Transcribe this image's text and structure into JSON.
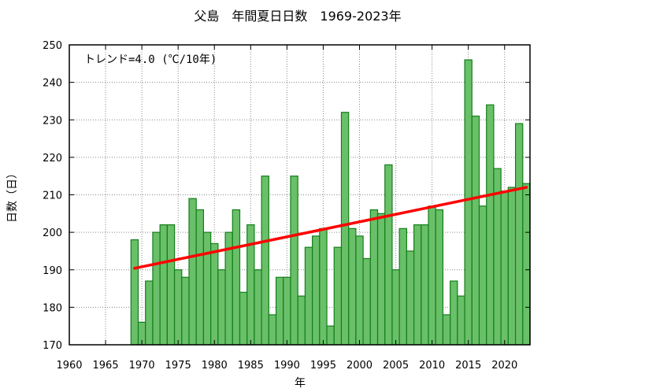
{
  "chart_data": {
    "type": "bar",
    "title": "父島　年間夏日日数　1969-2023年",
    "xlabel": "年",
    "ylabel": "日数（日）",
    "annotation": "トレンド=4.0 (℃/10年)",
    "xlim": [
      1960,
      2023.5
    ],
    "ylim": [
      170,
      250
    ],
    "xticks": [
      1960,
      1965,
      1970,
      1975,
      1980,
      1985,
      1990,
      1995,
      2000,
      2005,
      2010,
      2015,
      2020
    ],
    "yticks": [
      170,
      180,
      190,
      200,
      210,
      220,
      230,
      240,
      250
    ],
    "grid": true,
    "bar_color": "#6abf69",
    "bar_edge_color": "#137f1a",
    "trend_color": "#ff0000",
    "x": [
      1969,
      1970,
      1971,
      1972,
      1973,
      1974,
      1975,
      1976,
      1977,
      1978,
      1979,
      1980,
      1981,
      1982,
      1983,
      1984,
      1985,
      1986,
      1987,
      1988,
      1989,
      1990,
      1991,
      1992,
      1993,
      1994,
      1995,
      1996,
      1997,
      1998,
      1999,
      2000,
      2001,
      2002,
      2003,
      2004,
      2005,
      2006,
      2007,
      2008,
      2009,
      2010,
      2011,
      2012,
      2013,
      2014,
      2015,
      2016,
      2017,
      2018,
      2019,
      2020,
      2021,
      2022,
      2023
    ],
    "values": [
      198,
      176,
      187,
      200,
      202,
      202,
      190,
      188,
      209,
      206,
      200,
      197,
      190,
      200,
      206,
      184,
      202,
      190,
      215,
      178,
      188,
      188,
      215,
      183,
      196,
      199,
      201,
      175,
      196,
      232,
      201,
      199,
      193,
      206,
      205,
      218,
      190,
      201,
      195,
      202,
      202,
      207,
      206,
      178,
      187,
      183,
      246,
      231,
      207,
      234,
      217,
      211,
      212,
      229,
      213
    ],
    "trend": {
      "x": [
        1969,
        2023
      ],
      "y": [
        190.4,
        212.0
      ]
    }
  }
}
